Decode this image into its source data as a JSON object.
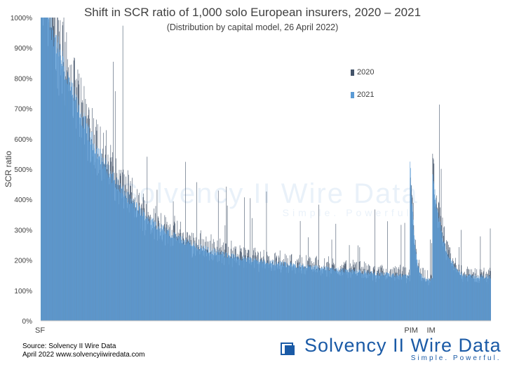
{
  "chart_data": {
    "type": "bar",
    "title": "Shift in SCR ratio of 1,000 solo European insurers, 2020 – 2021",
    "subtitle": "(Distribution by capital model, 26 April 2022)",
    "xlabel": "",
    "ylabel": "SCR ratio",
    "ylim": [
      0,
      10
    ],
    "y_tick_labels": [
      "0%",
      "100%",
      "200%",
      "300%",
      "400%",
      "500%",
      "600%",
      "700%",
      "800%",
      "900%",
      "1000%"
    ],
    "y_ticks": [
      0,
      1,
      2,
      3,
      4,
      5,
      6,
      7,
      8,
      9,
      10
    ],
    "grid": false,
    "legend_position": "top-right",
    "groups": [
      {
        "label": "SF",
        "count": 820
      },
      {
        "label": "PIM",
        "count": 50
      },
      {
        "label": "IM",
        "count": 130
      }
    ],
    "series": [
      {
        "name": "2020",
        "color": "#44546a"
      },
      {
        "name": "2021",
        "color": "#5b9bd5"
      }
    ]
  },
  "footer": {
    "source_line1": "Source: Solvency II Wire Data",
    "source_line2": "April 2022  www.solvencyiiwiredata.com"
  },
  "brand": {
    "name": "Solvency II Wire Data",
    "tagline": "Simple. Powerful."
  }
}
